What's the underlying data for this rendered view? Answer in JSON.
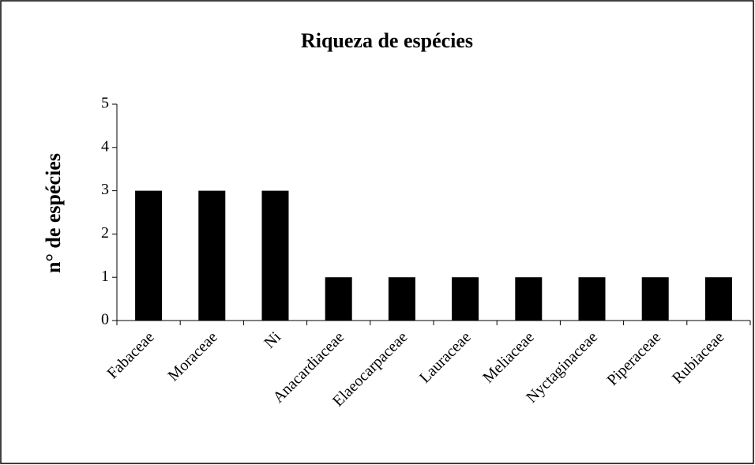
{
  "chart_data": {
    "type": "bar",
    "title": "Riqueza de espécies",
    "y_label": "n° de espécies",
    "categories": [
      "Fabaceae",
      "Moraceae",
      "Ni",
      "Anacardiaceae",
      "Elaeocarpaceae",
      "Lauraceae",
      "Meliaceae",
      "Nyctaginaceae",
      "Piperaceae",
      "Rubiaceae"
    ],
    "values": [
      3,
      3,
      3,
      1,
      1,
      1,
      1,
      1,
      1,
      1
    ],
    "color": "#000000",
    "ylim": [
      0,
      5
    ],
    "yticks": [
      0,
      1,
      2,
      3,
      4,
      5
    ],
    "grid": false
  }
}
